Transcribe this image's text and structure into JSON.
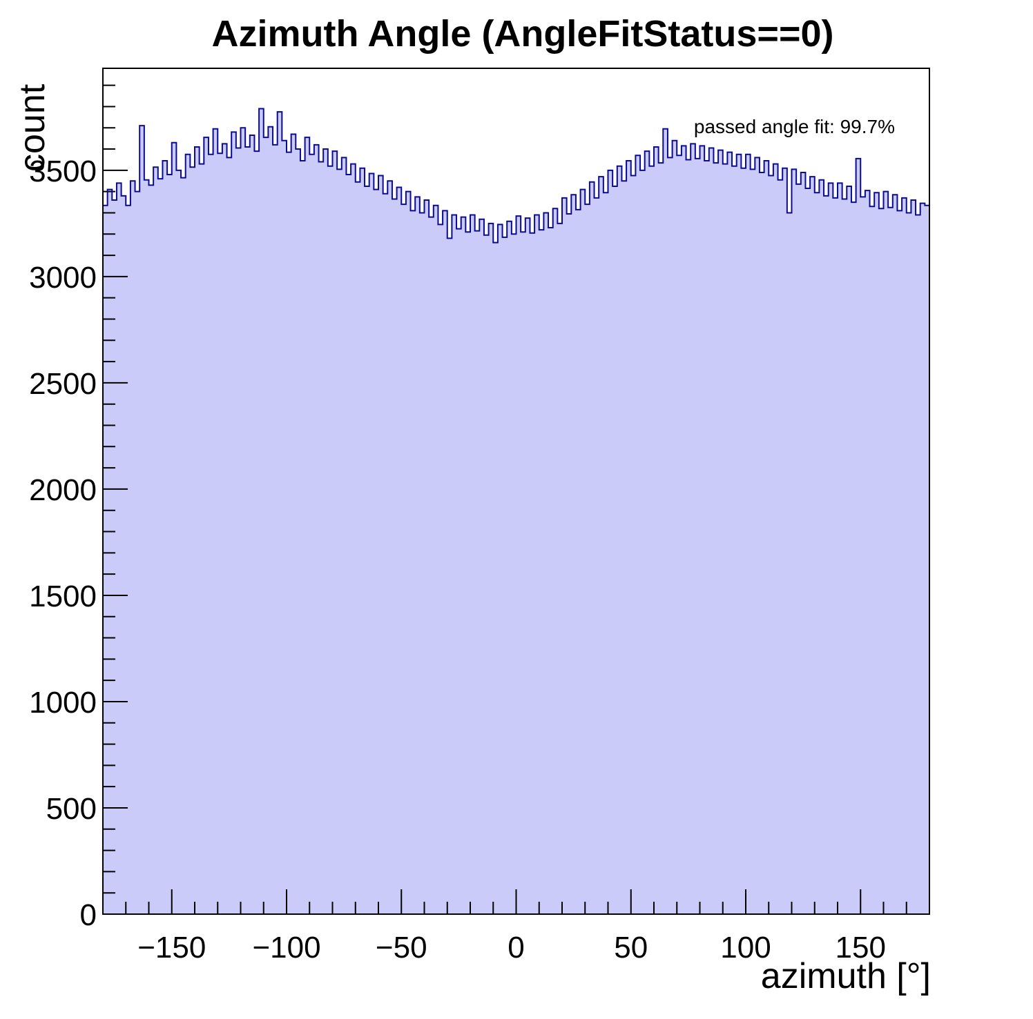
{
  "chart_data": {
    "type": "bar",
    "subtype": "histogram",
    "title": "Azimuth Angle (AngleFitStatus==0)",
    "xlabel": "azimuth [°]",
    "ylabel": "count",
    "annotation": "passed angle fit: 99.7%",
    "xlim": [
      -180,
      180
    ],
    "ylim": [
      0,
      3980
    ],
    "grid": false,
    "legend_position": "none",
    "x_major_ticks": [
      -150,
      -100,
      -50,
      0,
      50,
      100,
      150
    ],
    "x_major_tick_labels": [
      "−150",
      "−100",
      "−50",
      "0",
      "50",
      "100",
      "150"
    ],
    "x_minor_tick_step": 10,
    "y_major_ticks": [
      0,
      500,
      1000,
      1500,
      2000,
      2500,
      3000,
      3500
    ],
    "y_major_tick_labels": [
      "0",
      "500",
      "1000",
      "1500",
      "2000",
      "2500",
      "3000",
      "3500"
    ],
    "y_minor_tick_step": 100,
    "bin_start": -180,
    "bin_width": 2,
    "values": [
      3335,
      3410,
      3360,
      3440,
      3380,
      3335,
      3450,
      3400,
      3710,
      3455,
      3430,
      3515,
      3460,
      3545,
      3480,
      3630,
      3500,
      3465,
      3575,
      3515,
      3610,
      3530,
      3655,
      3575,
      3695,
      3580,
      3625,
      3560,
      3680,
      3605,
      3700,
      3610,
      3665,
      3590,
      3790,
      3655,
      3705,
      3620,
      3775,
      3640,
      3585,
      3670,
      3600,
      3545,
      3655,
      3575,
      3620,
      3540,
      3600,
      3520,
      3590,
      3505,
      3560,
      3480,
      3530,
      3445,
      3510,
      3425,
      3485,
      3410,
      3475,
      3390,
      3450,
      3365,
      3420,
      3340,
      3400,
      3310,
      3375,
      3300,
      3360,
      3280,
      3335,
      3245,
      3310,
      3180,
      3290,
      3225,
      3280,
      3210,
      3290,
      3215,
      3270,
      3195,
      3250,
      3160,
      3245,
      3185,
      3260,
      3200,
      3285,
      3210,
      3275,
      3205,
      3290,
      3220,
      3300,
      3230,
      3320,
      3250,
      3370,
      3295,
      3385,
      3315,
      3410,
      3340,
      3445,
      3370,
      3470,
      3395,
      3500,
      3425,
      3520,
      3450,
      3545,
      3475,
      3570,
      3500,
      3590,
      3520,
      3610,
      3535,
      3695,
      3560,
      3640,
      3570,
      3615,
      3550,
      3625,
      3555,
      3615,
      3545,
      3605,
      3535,
      3595,
      3530,
      3585,
      3520,
      3575,
      3510,
      3575,
      3505,
      3560,
      3490,
      3545,
      3475,
      3530,
      3455,
      3510,
      3300,
      3505,
      3435,
      3490,
      3415,
      3470,
      3395,
      3455,
      3380,
      3440,
      3370,
      3440,
      3365,
      3425,
      3350,
      3555,
      3375,
      3405,
      3330,
      3395,
      3320,
      3400,
      3325,
      3385,
      3310,
      3370,
      3300,
      3360,
      3290,
      3345,
      3335
    ],
    "colors": {
      "fill": "#cbcbfa",
      "line": "#0b0b8f",
      "axis": "#000000",
      "text": "#000000",
      "background": "#ffffff"
    }
  }
}
